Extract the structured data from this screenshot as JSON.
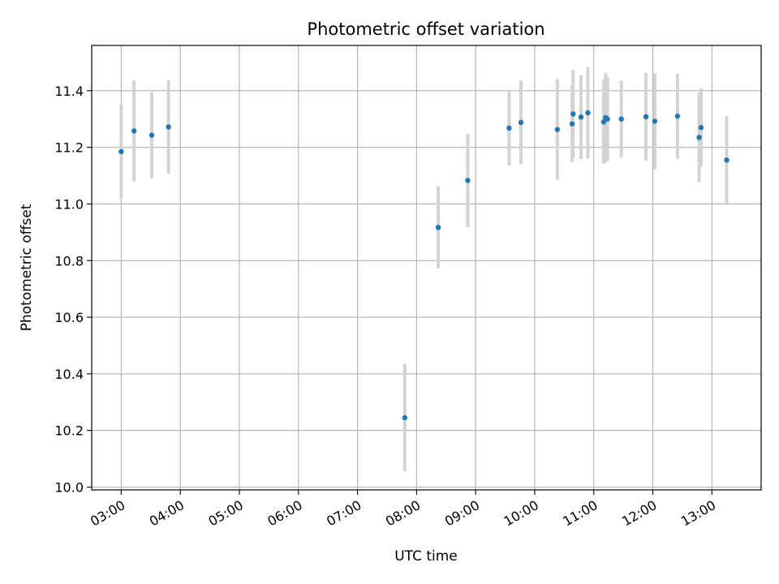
{
  "chart_data": {
    "type": "scatter",
    "title": "Photometric offset variation",
    "xlabel": "UTC time",
    "ylabel": "Photometric offset",
    "x_unit": "UTC time (HH:MM)",
    "xlim": [
      "02:30",
      "13:50"
    ],
    "ylim": [
      9.99,
      11.56
    ],
    "xticks": [
      "03:00",
      "04:00",
      "05:00",
      "06:00",
      "07:00",
      "08:00",
      "09:00",
      "10:00",
      "11:00",
      "12:00",
      "13:00"
    ],
    "yticks": [
      "10.0",
      "10.2",
      "10.4",
      "10.6",
      "10.8",
      "11.0",
      "11.2",
      "11.4"
    ],
    "grid": true,
    "marker_color": "#1f77b4",
    "errorbar_color": "#d3d3d3",
    "points": [
      {
        "x": "03:00",
        "y": 11.185,
        "err": 0.165
      },
      {
        "x": "03:13",
        "y": 11.258,
        "err": 0.178
      },
      {
        "x": "03:31",
        "y": 11.243,
        "err": 0.152
      },
      {
        "x": "03:48",
        "y": 11.272,
        "err": 0.165
      },
      {
        "x": "07:48",
        "y": 10.245,
        "err": 0.19
      },
      {
        "x": "08:22",
        "y": 10.917,
        "err": 0.145
      },
      {
        "x": "08:52",
        "y": 11.083,
        "err": 0.165
      },
      {
        "x": "09:34",
        "y": 11.268,
        "err": 0.132
      },
      {
        "x": "09:46",
        "y": 11.288,
        "err": 0.148
      },
      {
        "x": "10:23",
        "y": 11.263,
        "err": 0.178
      },
      {
        "x": "10:38",
        "y": 11.283,
        "err": 0.135
      },
      {
        "x": "10:39",
        "y": 11.318,
        "err": 0.155
      },
      {
        "x": "10:47",
        "y": 11.307,
        "err": 0.148
      },
      {
        "x": "10:54",
        "y": 11.322,
        "err": 0.162
      },
      {
        "x": "11:10",
        "y": 11.29,
        "err": 0.148
      },
      {
        "x": "11:12",
        "y": 11.305,
        "err": 0.158
      },
      {
        "x": "11:14",
        "y": 11.3,
        "err": 0.148
      },
      {
        "x": "11:28",
        "y": 11.3,
        "err": 0.135
      },
      {
        "x": "11:53",
        "y": 11.308,
        "err": 0.155
      },
      {
        "x": "12:02",
        "y": 11.292,
        "err": 0.17
      },
      {
        "x": "12:25",
        "y": 11.31,
        "err": 0.15
      },
      {
        "x": "12:47",
        "y": 11.235,
        "err": 0.158
      },
      {
        "x": "12:49",
        "y": 11.27,
        "err": 0.138
      },
      {
        "x": "13:15",
        "y": 11.155,
        "err": 0.155
      }
    ]
  }
}
